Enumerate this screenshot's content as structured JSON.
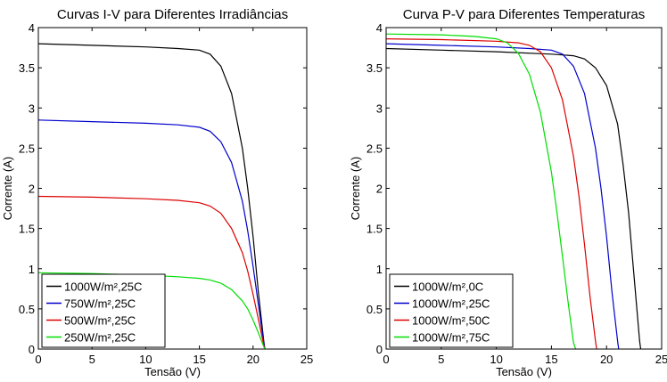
{
  "chart_data": [
    {
      "type": "line",
      "title": "Curvas I-V para Diferentes Irradiâncias",
      "xlabel": "Tensão (V)",
      "ylabel": "Corrente (A)",
      "xlim": [
        0,
        25
      ],
      "ylim": [
        0,
        4
      ],
      "xticks": [
        0,
        5,
        10,
        15,
        20,
        25
      ],
      "yticks": [
        0,
        0.5,
        1,
        1.5,
        2,
        2.5,
        3,
        3.5,
        4
      ],
      "xtick_labels": [
        "0",
        "5",
        "10",
        "15",
        "20",
        "25"
      ],
      "ytick_labels": [
        "0",
        "0.5",
        "1",
        "1.5",
        "2",
        "2.5",
        "3",
        "3.5",
        "4"
      ],
      "grid": false,
      "legend_position": "bottom-left",
      "series": [
        {
          "name": "1000W/m²,25C",
          "color": "#000000",
          "x": [
            0,
            5,
            10,
            13,
            15,
            16,
            17,
            18,
            19,
            19.5,
            20,
            20.5,
            21,
            21.1
          ],
          "y": [
            3.8,
            3.78,
            3.76,
            3.74,
            3.72,
            3.67,
            3.52,
            3.18,
            2.5,
            2.0,
            1.4,
            0.7,
            0.1,
            0
          ]
        },
        {
          "name": "750W/m²,25C",
          "color": "#0000cc",
          "x": [
            0,
            5,
            10,
            13,
            15,
            16,
            17,
            18,
            19,
            19.5,
            20,
            20.5,
            21,
            21.1
          ],
          "y": [
            2.85,
            2.83,
            2.81,
            2.79,
            2.76,
            2.71,
            2.58,
            2.32,
            1.84,
            1.47,
            1.03,
            0.55,
            0.08,
            0
          ]
        },
        {
          "name": "500W/m²,25C",
          "color": "#dd0000",
          "x": [
            0,
            5,
            10,
            13,
            15,
            16,
            17,
            18,
            19,
            19.5,
            20,
            20.5,
            21,
            21.1
          ],
          "y": [
            1.9,
            1.89,
            1.87,
            1.85,
            1.82,
            1.78,
            1.69,
            1.5,
            1.2,
            0.97,
            0.68,
            0.37,
            0.05,
            0
          ]
        },
        {
          "name": "250W/m²,25C",
          "color": "#00dd00",
          "x": [
            0,
            5,
            10,
            13,
            15,
            16,
            17,
            18,
            19,
            19.5,
            20,
            20.5,
            21,
            21.1
          ],
          "y": [
            0.95,
            0.94,
            0.92,
            0.9,
            0.88,
            0.86,
            0.82,
            0.74,
            0.6,
            0.5,
            0.36,
            0.2,
            0.03,
            0
          ]
        }
      ]
    },
    {
      "type": "line",
      "title": "Curva P-V para Diferentes Temperaturas",
      "xlabel": "Tensão (V)",
      "ylabel": "Corrente (A)",
      "xlim": [
        0,
        25
      ],
      "ylim": [
        0,
        4
      ],
      "xticks": [
        0,
        5,
        10,
        15,
        20,
        25
      ],
      "yticks": [
        0,
        0.5,
        1,
        1.5,
        2,
        2.5,
        3,
        3.5,
        4
      ],
      "xtick_labels": [
        "0",
        "5",
        "10",
        "15",
        "20",
        "25"
      ],
      "ytick_labels": [
        "0",
        "0.5",
        "1",
        "1.5",
        "2",
        "2.5",
        "3",
        "3.5",
        "4"
      ],
      "grid": false,
      "legend_position": "bottom-left",
      "series": [
        {
          "name": "1000W/m²,0C",
          "color": "#000000",
          "x": [
            0,
            5,
            10,
            15,
            17,
            18,
            19,
            20,
            21,
            21.5,
            22,
            22.5,
            23,
            23.1
          ],
          "y": [
            3.74,
            3.72,
            3.7,
            3.67,
            3.65,
            3.61,
            3.5,
            3.28,
            2.8,
            2.3,
            1.7,
            0.9,
            0.1,
            0
          ]
        },
        {
          "name": "1000W/m²,25C",
          "color": "#0000cc",
          "x": [
            0,
            5,
            10,
            13,
            15,
            16,
            17,
            18,
            19,
            19.5,
            20,
            20.5,
            21,
            21.1
          ],
          "y": [
            3.8,
            3.78,
            3.76,
            3.74,
            3.72,
            3.67,
            3.52,
            3.18,
            2.5,
            2.0,
            1.4,
            0.7,
            0.1,
            0
          ]
        },
        {
          "name": "1000W/m²,50C",
          "color": "#dd0000",
          "x": [
            0,
            5,
            10,
            12,
            13,
            14,
            15,
            16,
            17,
            17.5,
            18,
            18.5,
            19,
            19.1
          ],
          "y": [
            3.86,
            3.85,
            3.83,
            3.81,
            3.78,
            3.7,
            3.5,
            3.1,
            2.4,
            1.9,
            1.3,
            0.65,
            0.1,
            0
          ]
        },
        {
          "name": "1000W/m²,75C",
          "color": "#00dd00",
          "x": [
            0,
            5,
            8,
            10,
            11,
            12,
            13,
            14,
            15,
            15.5,
            16,
            16.5,
            17,
            17.2
          ],
          "y": [
            3.92,
            3.91,
            3.89,
            3.86,
            3.81,
            3.68,
            3.42,
            2.95,
            2.2,
            1.7,
            1.15,
            0.6,
            0.08,
            0
          ]
        }
      ]
    }
  ]
}
